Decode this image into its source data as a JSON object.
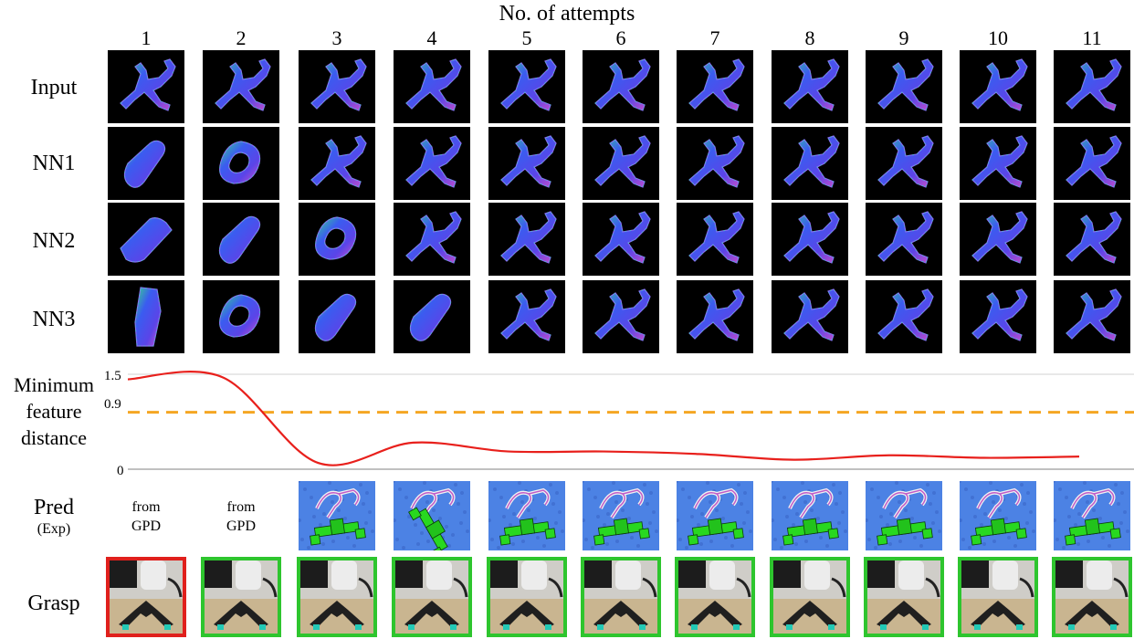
{
  "header": {
    "title": "No. of attempts"
  },
  "columns": [
    "1",
    "2",
    "3",
    "4",
    "5",
    "6",
    "7",
    "8",
    "9",
    "10",
    "11"
  ],
  "rows": {
    "input": "Input",
    "nn1": "NN1",
    "nn2": "NN2",
    "nn3": "NN3",
    "metric": "Minimum\nfeature\ndistance",
    "pred": "Pred",
    "pred_sub": "(Exp)",
    "grasp": "Grasp"
  },
  "tile_kinds": {
    "input": [
      "hand",
      "hand",
      "hand",
      "hand",
      "hand",
      "hand",
      "hand",
      "hand",
      "hand",
      "hand",
      "hand"
    ],
    "nn1": [
      "bottle",
      "ring",
      "hand",
      "hand",
      "hand",
      "hand",
      "hand",
      "hand",
      "hand",
      "hand",
      "hand"
    ],
    "nn2": [
      "plank",
      "bottle",
      "ring",
      "hand",
      "hand",
      "hand",
      "hand",
      "hand",
      "hand",
      "hand",
      "hand"
    ],
    "nn3": [
      "bar",
      "ring",
      "bottle",
      "bottle",
      "hand",
      "hand",
      "hand",
      "hand",
      "hand",
      "hand",
      "hand"
    ]
  },
  "pred_cells": [
    {
      "kind": "text",
      "line1": "from",
      "line2": "GPD"
    },
    {
      "kind": "text",
      "line1": "from",
      "line2": "GPD"
    },
    {
      "kind": "image"
    },
    {
      "kind": "image"
    },
    {
      "kind": "image"
    },
    {
      "kind": "image"
    },
    {
      "kind": "image"
    },
    {
      "kind": "image"
    },
    {
      "kind": "image"
    },
    {
      "kind": "image"
    },
    {
      "kind": "image"
    }
  ],
  "grasp_outcomes": [
    "fail",
    "success",
    "success",
    "success",
    "success",
    "success",
    "success",
    "success",
    "success",
    "success",
    "success"
  ],
  "chart_data": {
    "type": "line",
    "x": [
      1,
      2,
      3,
      4,
      5,
      6,
      7,
      8,
      9,
      10,
      11
    ],
    "series": [
      {
        "values": [
          1.42,
          1.45,
          0.1,
          0.42,
          0.28,
          0.28,
          0.24,
          0.15,
          0.22,
          0.18,
          0.2
        ],
        "color": "#e8201c"
      }
    ],
    "threshold": {
      "value": 0.9,
      "color": "#f5a623",
      "style": "dashed"
    },
    "y_ticks": [
      "1.5",
      "0.9",
      "0"
    ],
    "ylim": [
      0,
      1.5
    ]
  },
  "colors": {
    "success": "#2ec52e",
    "fail": "#e0201c",
    "curve": "#e8201c",
    "threshold": "#f5a623"
  }
}
